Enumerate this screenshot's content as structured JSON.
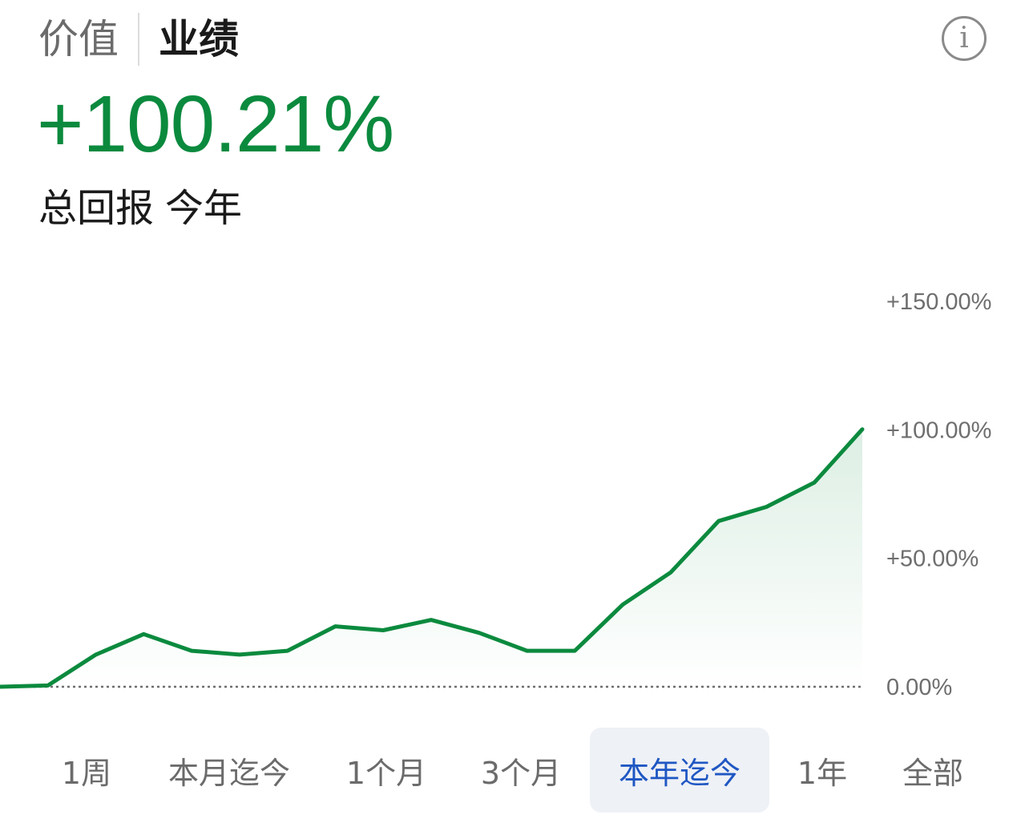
{
  "header": {
    "tabs": [
      {
        "label": "价值",
        "active": false
      },
      {
        "label": "业绩",
        "active": true
      }
    ],
    "info_icon": "info-icon"
  },
  "summary": {
    "value": "+100.21%",
    "label": "总回报",
    "period": "今年"
  },
  "chart_data": {
    "type": "area",
    "y": [
      0.0,
      0.5,
      12.5,
      20.5,
      14.0,
      12.5,
      14.0,
      23.5,
      22.0,
      26.0,
      21.0,
      14.0,
      14.0,
      32.0,
      44.5,
      64.5,
      70.0,
      79.5,
      100.21
    ],
    "ylim": [
      0,
      150
    ],
    "yticks": [
      0,
      50,
      100,
      150
    ],
    "ytick_labels": [
      "0.00%",
      "+50.00%",
      "+100.00%",
      "+150.00%"
    ],
    "baseline": 0,
    "grid": false,
    "color": "#0b8a3e"
  },
  "ranges": {
    "items": [
      "1周",
      "本月迄今",
      "1个月",
      "3个月",
      "本年迄今",
      "1年",
      "全部"
    ],
    "active_index": 4,
    "active_color": "#1f57c3"
  }
}
